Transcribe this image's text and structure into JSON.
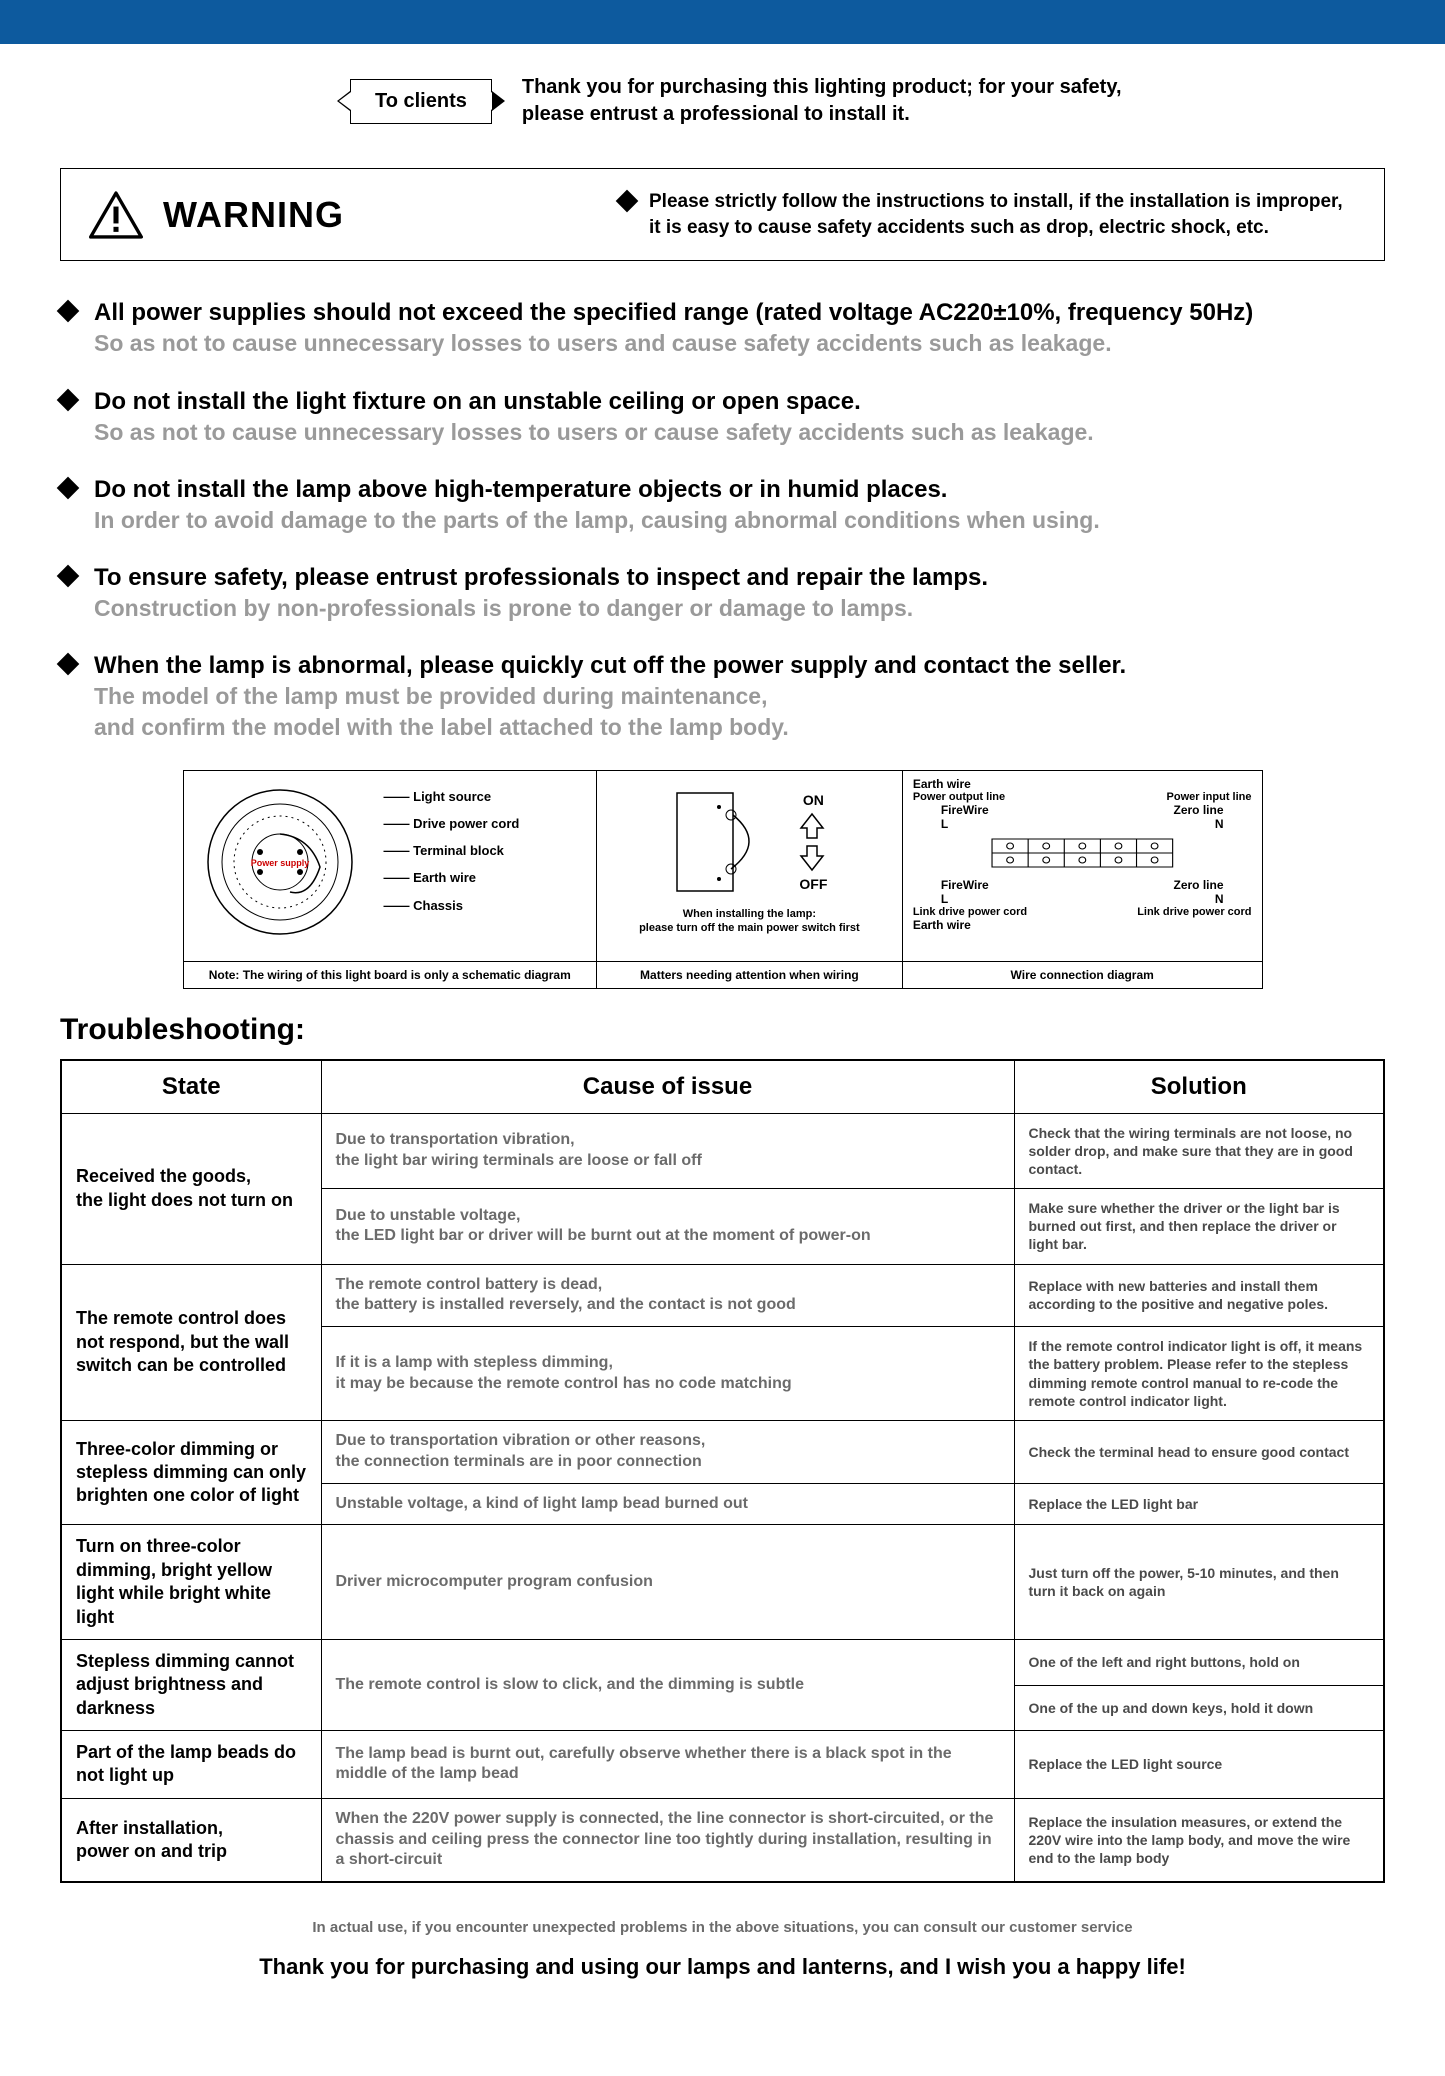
{
  "colors": {
    "top_bar": "#0d5a9e",
    "text": "#000000",
    "gray_text": "#9a9a9a",
    "cause_gray": "#6b6b6b",
    "background": "#ffffff",
    "border": "#000000"
  },
  "client": {
    "tag": "To clients",
    "thanks": "Thank you for purchasing this lighting product; for your safety,\nplease entrust a professional to install it."
  },
  "warning": {
    "title": "WARNING",
    "note": "Please strictly follow the instructions to install, if the installation is improper, it is easy to cause safety accidents such as drop, electric shock, etc."
  },
  "bullets": [
    {
      "bold": "All power supplies should not exceed the specified range (rated voltage AC220±10%, frequency 50Hz)",
      "gray": "So as not to cause unnecessary losses to users and cause safety accidents such as leakage."
    },
    {
      "bold": "Do not install the light fixture on an unstable ceiling or open space.",
      "gray": "So as not to cause unnecessary losses to users or cause safety accidents such as leakage."
    },
    {
      "bold": "Do not install the lamp above high-temperature objects or in humid places.",
      "gray": "In order to avoid damage to the parts of the lamp, causing abnormal conditions when using."
    },
    {
      "bold": "To ensure safety, please entrust professionals to inspect and repair the lamps.",
      "gray": "Construction by non-professionals is prone to danger or damage to lamps."
    },
    {
      "bold": "When the lamp is abnormal, please quickly cut off the power supply and contact the seller.",
      "gray": "The model of the lamp must be provided during maintenance,\nand confirm the model with the label attached to the lamp body."
    }
  ],
  "diagrams": {
    "d1": {
      "labels": [
        "Light source",
        "Drive power cord",
        "Terminal block",
        "Earth wire",
        "Chassis"
      ],
      "center": "Power supply",
      "caption": "Note: The wiring of this light board is only a schematic diagram"
    },
    "d2": {
      "on": "ON",
      "off": "OFF",
      "note": "When installing the lamp:\nplease turn off the main power switch first",
      "caption": "Matters needing attention when wiring"
    },
    "d3": {
      "top": "Earth wire",
      "power_out": "Power output line",
      "power_in": "Power input line",
      "firewire": "FireWire",
      "L": "L",
      "zero": "Zero line",
      "N": "N",
      "link": "Link drive power cord",
      "bottom": "Earth wire",
      "caption": "Wire connection diagram"
    }
  },
  "troubleshoot": {
    "heading": "Troubleshooting:",
    "columns": [
      "State",
      "Cause of issue",
      "Solution"
    ],
    "rows": [
      {
        "state": "Received the goods,\nthe light does not turn on",
        "sub": [
          {
            "cause": "Due to transportation vibration,\nthe light bar wiring terminals are loose or fall off",
            "sol": "Check that the wiring terminals are not loose, no solder drop, and make sure that they are in good contact."
          },
          {
            "cause": "Due to unstable voltage,\nthe LED light bar or driver will be burnt out at the moment of power-on",
            "sol": "Make sure whether the driver or the light bar is burned out first, and then replace the driver or light bar."
          }
        ]
      },
      {
        "state": "The remote control does not respond, but the wall switch can be controlled",
        "sub": [
          {
            "cause": "The remote control battery is dead,\nthe battery is installed reversely, and the contact is not good",
            "sol": "Replace with new batteries and install them according to the positive and negative poles."
          },
          {
            "cause": "If it is a lamp with stepless dimming,\nit may be because the remote control has no code matching",
            "sol": "If the remote control indicator light is off, it means the battery problem. Please refer to the stepless dimming remote control manual to re-code the remote control indicator light."
          }
        ]
      },
      {
        "state": "Three-color dimming or stepless dimming can only brighten one color of light",
        "sub": [
          {
            "cause": "Due to transportation vibration or other reasons,\nthe connection terminals are in poor connection",
            "sol": "Check the terminal head to ensure good contact"
          },
          {
            "cause": "Unstable voltage, a kind of light lamp bead burned out",
            "sol": "Replace the LED light bar"
          }
        ]
      },
      {
        "state": "Turn on three-color dimming, bright yellow light while bright white light",
        "sub": [
          {
            "cause": "Driver microcomputer program confusion",
            "sol": "Just turn off the power, 5-10 minutes, and then turn it back on again"
          }
        ]
      },
      {
        "state": "Stepless dimming cannot adjust brightness and darkness",
        "sub": [
          {
            "cause": "The remote control is slow to click, and the dimming is subtle",
            "sol": "One of the left and right buttons, hold on",
            "sol2": "One of the up and down keys, hold it down"
          }
        ]
      },
      {
        "state": "Part of the lamp beads do not light up",
        "sub": [
          {
            "cause": "The lamp bead is burnt out, carefully observe whether there is a black spot in the middle of the lamp bead",
            "sol": "Replace the LED light source"
          }
        ]
      },
      {
        "state": "After installation,\npower on and trip",
        "sub": [
          {
            "cause": "When the 220V power supply is connected, the line connector is short-circuited, or the chassis and ceiling press the connector line too tightly during installation, resulting in a short-circuit",
            "sol": "Replace the insulation measures, or extend the 220V wire into the lamp body, and move the wire end to the lamp body"
          }
        ]
      }
    ]
  },
  "footnote": "In actual use, if you encounter unexpected problems in the above situations, you can consult our customer service",
  "thanks_footer": "Thank you for purchasing and using our lamps and lanterns, and I wish you a happy life!"
}
